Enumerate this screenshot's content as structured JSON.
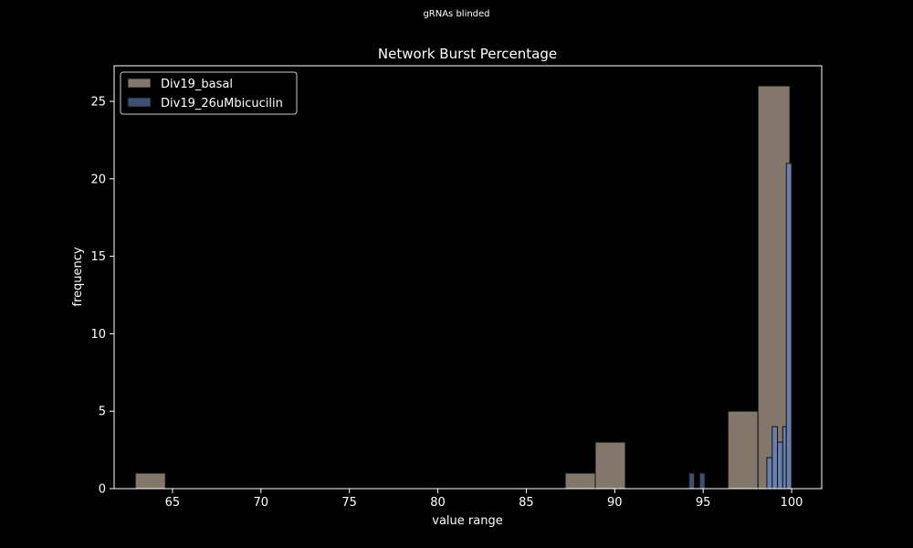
{
  "figure": {
    "suptitle": "gRNAs blinded"
  },
  "chart_data": {
    "type": "bar",
    "title": "Network Burst Percentage",
    "xlabel": "value range",
    "ylabel": "frequency",
    "xlim": [
      61.7,
      101.7
    ],
    "ylim": [
      0,
      27.3
    ],
    "xticks": [
      65,
      70,
      75,
      80,
      85,
      90,
      95,
      100
    ],
    "yticks": [
      0,
      5,
      10,
      15,
      20,
      25
    ],
    "legend_position": "upper-left",
    "colors": {
      "background": "#000000",
      "basal": "#82776a",
      "bicucilin": "#3d4f73",
      "bicucilin_tall": "#6a7fa8",
      "bar_edge": "#111111"
    },
    "series": [
      {
        "name": "Div19_basal",
        "color": "#82776a",
        "bins": [
          {
            "x0": 62.9,
            "x1": 64.6,
            "count": 1
          },
          {
            "x0": 87.2,
            "x1": 88.9,
            "count": 1
          },
          {
            "x0": 88.9,
            "x1": 90.6,
            "count": 3
          },
          {
            "x0": 96.4,
            "x1": 98.1,
            "count": 5
          },
          {
            "x0": 98.1,
            "x1": 99.9,
            "count": 26
          }
        ]
      },
      {
        "name": "Div19_26uMbicucilin",
        "color": "#3d4f73",
        "bins": [
          {
            "x0": 94.2,
            "x1": 94.5,
            "count": 1
          },
          {
            "x0": 94.8,
            "x1": 95.1,
            "count": 1
          },
          {
            "x0": 98.6,
            "x1": 98.9,
            "count": 2
          },
          {
            "x0": 98.9,
            "x1": 99.2,
            "count": 4
          },
          {
            "x0": 99.2,
            "x1": 99.5,
            "count": 3
          },
          {
            "x0": 99.5,
            "x1": 99.7,
            "count": 4
          },
          {
            "x0": 99.7,
            "x1": 100.0,
            "count": 21
          }
        ]
      }
    ]
  }
}
